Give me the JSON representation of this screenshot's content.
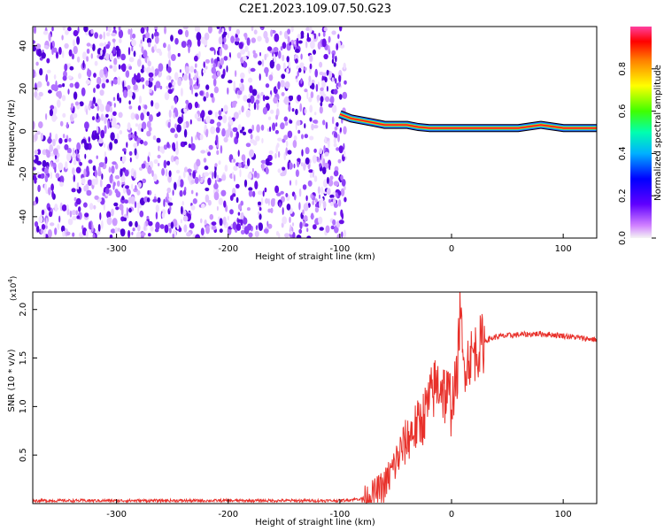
{
  "title": "C2E1.2023.109.07.50.G23",
  "colors": {
    "waterfall_purple": "#6a00e0",
    "snr_line": "#e8302a",
    "colorbar_stops": [
      "#f8f8f8",
      "#c040ff",
      "#5000ff",
      "#00a0ff",
      "#00ffa0",
      "#40ff00",
      "#ffff00",
      "#ff8000",
      "#ff0000",
      "#ff40a0"
    ]
  },
  "chart_data": [
    {
      "type": "heatmap",
      "title": "C2E1.2023.109.07.50.G23",
      "xlabel": "Height of straight line (km)",
      "ylabel": "Frequency (Hz)",
      "xlim": [
        -375,
        130
      ],
      "ylim": [
        -50,
        49
      ],
      "xticks": [
        -300,
        -200,
        -100,
        0,
        100
      ],
      "xtick_labels": [
        "-300",
        "-200",
        "-100",
        "0",
        "100"
      ],
      "yticks": [
        -40,
        -20,
        0,
        20,
        40
      ],
      "ytick_labels": [
        "-40",
        "-20",
        "0",
        "20",
        "40"
      ],
      "noise_region_x": [
        -375,
        -95
      ],
      "signal_track": {
        "x": [
          -100,
          -90,
          -80,
          -70,
          -60,
          -50,
          -40,
          -30,
          -20,
          -10,
          0,
          20,
          40,
          60,
          80,
          100,
          130
        ],
        "frequency": [
          8,
          6,
          5,
          4,
          3,
          3,
          3,
          2,
          1.5,
          1.5,
          1.5,
          1.5,
          1.5,
          1.5,
          3,
          1.5,
          1.5
        ]
      },
      "colorbar": {
        "label": "Normalized spectral amplitude",
        "range": [
          0,
          1
        ],
        "ticks": [
          0.0,
          0.2,
          0.4,
          0.6,
          0.8
        ],
        "tick_labels": [
          "0.0",
          "0.2",
          "0.4",
          "0.6",
          "0.8"
        ]
      },
      "grid": false
    },
    {
      "type": "line",
      "xlabel": "Height of straight line (km)",
      "ylabel": "SNR (10 * v/v)",
      "y_multiplier_label": "(x10",
      "y_multiplier_exp": "4",
      "y_multiplier_close": ")",
      "xlim": [
        -375,
        130
      ],
      "ylim": [
        0,
        2.18
      ],
      "xticks": [
        -300,
        -200,
        -100,
        0,
        100
      ],
      "xtick_labels": [
        "-300",
        "-200",
        "-100",
        "0",
        "100"
      ],
      "yticks": [
        0.5,
        1.0,
        1.5,
        2.0
      ],
      "ytick_labels": [
        "0.5",
        "1.0",
        "1.5",
        "2.0"
      ],
      "series": [
        {
          "x": [
            -375,
            -300,
            -200,
            -100,
            -80,
            -70,
            -60,
            -55,
            -50,
            -45,
            -40,
            -35,
            -30,
            -25,
            -20,
            -15,
            -10,
            -5,
            0,
            5,
            8,
            10,
            15,
            20,
            25,
            30,
            40,
            60,
            80,
            100,
            120,
            130
          ],
          "y": [
            0.03,
            0.03,
            0.03,
            0.03,
            0.05,
            0.1,
            0.18,
            0.3,
            0.42,
            0.55,
            0.65,
            0.75,
            0.8,
            0.9,
            1.05,
            1.2,
            1.25,
            1.1,
            1.05,
            1.3,
            2.1,
            1.4,
            1.5,
            1.55,
            1.62,
            1.68,
            1.72,
            1.74,
            1.75,
            1.73,
            1.7,
            1.69
          ]
        }
      ],
      "grid": false
    }
  ]
}
